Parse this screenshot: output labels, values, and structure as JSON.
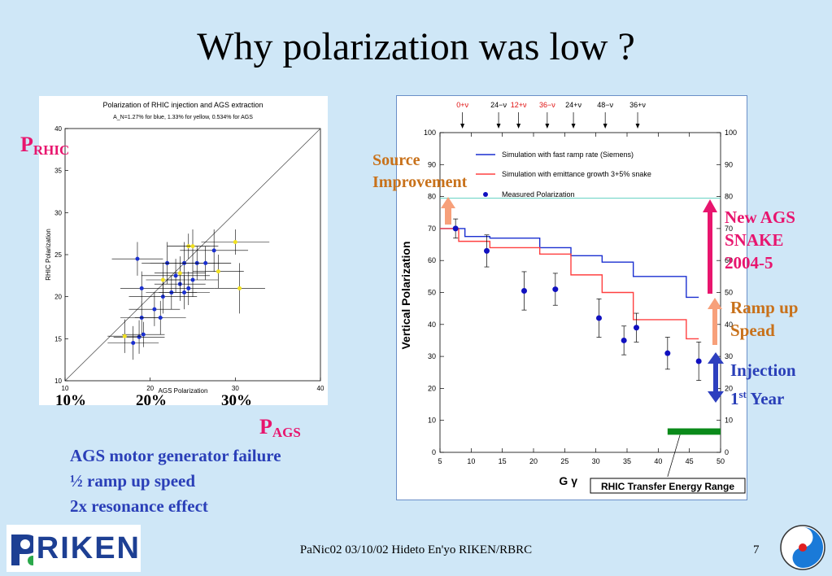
{
  "slide": {
    "title": "Why polarization was low ?",
    "footer": "PaNic02  03/10/02  Hideto En'yo RIKEN/RBRC",
    "page_number": "7",
    "logo_text": "RIKEN"
  },
  "labels": {
    "p_rhic": "P",
    "p_rhic_sub": "RHIC",
    "p_ags": "P",
    "p_ags_sub": "AGS",
    "pct_10": "10%",
    "pct_20": "20%",
    "pct_30": "30%",
    "source_improvement": [
      "Source",
      "Improvement"
    ],
    "new_ags_snake": [
      "New AGS",
      "SNAKE",
      "2004-5"
    ],
    "ramp_up": [
      "Ramp up",
      "Spead"
    ],
    "injection": "Injection",
    "first_year_num": "1",
    "first_year_sup": "st",
    "first_year_rest": " Year"
  },
  "notes": [
    "AGS motor generator failure",
    "½  ramp up speed",
    "2x resonance effect"
  ],
  "colors": {
    "blue_text": "#2a3fb8",
    "pink": "#e8156e",
    "orange_text": "#c8711a",
    "orange_arrow": "#f7a07a",
    "blue_arrow": "#2d3fbf",
    "green_bar": "#0a8a1a",
    "teal_line": "#60d0c0"
  },
  "chart_data": [
    {
      "type": "scatter",
      "title": "Polarization of RHIC  injection and AGS extraction",
      "subtitle": "A_N=1.27% for blue, 1.33% for yellow, 0.534% for AGS",
      "xlabel": "AGS Polarization",
      "ylabel": "RHIC Polarization",
      "xlim": [
        10,
        40
      ],
      "ylim": [
        10,
        40
      ],
      "xticks": [
        10,
        20,
        30,
        40
      ],
      "yticks": [
        10,
        15,
        20,
        25,
        30,
        35,
        40
      ],
      "diagonal": true,
      "series": [
        {
          "color": "#1a2fd0",
          "points": [
            [
              18.5,
              24.5,
              3,
              2
            ],
            [
              19,
              21,
              2.5,
              2
            ],
            [
              19,
              17.5,
              2.5,
              2
            ],
            [
              18.7,
              15.2,
              3,
              2
            ],
            [
              19.2,
              15.5,
              2.5,
              1.5
            ],
            [
              21.5,
              20,
              4,
              2
            ],
            [
              21.2,
              17.5,
              3,
              2
            ],
            [
              22,
              24,
              3,
              2.5
            ],
            [
              23,
              22.5,
              4,
              2
            ],
            [
              24,
              24,
              4,
              2.5
            ],
            [
              23.5,
              21.5,
              3,
              2
            ],
            [
              25,
              22,
              3,
              2
            ],
            [
              25.5,
              24,
              4,
              2
            ],
            [
              26.5,
              24,
              3,
              2
            ],
            [
              27.5,
              25.5,
              4,
              2.5
            ],
            [
              22.5,
              20.5,
              3,
              2
            ],
            [
              24,
              20.5,
              3,
              2
            ],
            [
              24.5,
              21,
              3,
              2
            ],
            [
              20.5,
              18.5,
              3,
              2
            ],
            [
              18,
              14.5,
              3,
              2
            ]
          ]
        },
        {
          "color": "#f0e020",
          "points": [
            [
              24.5,
              26,
              2.5,
              1.5
            ],
            [
              25,
              26,
              3,
              2
            ],
            [
              21.5,
              22,
              2,
              2
            ],
            [
              23.5,
              22.8,
              3,
              2
            ],
            [
              28,
              23,
              3,
              2
            ],
            [
              30,
              26.5,
              4,
              1.5
            ],
            [
              30.5,
              21,
              3,
              3
            ],
            [
              17,
              15.3,
              2,
              2
            ]
          ]
        }
      ]
    },
    {
      "type": "line",
      "xlabel": "G γ",
      "ylabel": "Vertical Polarization",
      "xlim": [
        5,
        50
      ],
      "ylim": [
        0,
        100
      ],
      "xticks": [
        5,
        10,
        15,
        20,
        25,
        30,
        35,
        40,
        45,
        50
      ],
      "yticks": [
        0,
        10,
        20,
        30,
        40,
        50,
        60,
        70,
        80,
        90,
        100
      ],
      "legend": [
        "Simulation with  fast ramp rate (Siemens)",
        "Simulation with emittance growth 3+5% snake",
        "Measured Polarization"
      ],
      "series": [
        {
          "name": "Simulation with  fast ramp rate (Siemens)",
          "color": "#1a2fd0",
          "steps": [
            [
              5,
              70
            ],
            [
              9,
              70
            ],
            [
              9,
              67.5
            ],
            [
              13,
              67.5
            ],
            [
              13,
              67
            ],
            [
              21,
              67
            ],
            [
              21,
              64
            ],
            [
              26,
              64
            ],
            [
              26,
              61.5
            ],
            [
              31,
              61.5
            ],
            [
              31,
              59.5
            ],
            [
              36,
              59.5
            ],
            [
              36,
              55
            ],
            [
              41,
              55
            ],
            [
              41,
              55
            ],
            [
              44.5,
              55
            ],
            [
              44.5,
              48.5
            ],
            [
              46.5,
              48.5
            ]
          ]
        },
        {
          "name": "Simulation with emittance growth 3+5% snake",
          "color": "#ff4040",
          "steps": [
            [
              5,
              70
            ],
            [
              8,
              70
            ],
            [
              8,
              66
            ],
            [
              13,
              66
            ],
            [
              13,
              64
            ],
            [
              21,
              64
            ],
            [
              21,
              62
            ],
            [
              26,
              62
            ],
            [
              26,
              55.5
            ],
            [
              31,
              55.5
            ],
            [
              31,
              50
            ],
            [
              36,
              50
            ],
            [
              36,
              41.5
            ],
            [
              44.5,
              41.5
            ],
            [
              44.5,
              35.5
            ],
            [
              46.5,
              35.5
            ]
          ]
        },
        {
          "name": "Measured Polarization",
          "color": "#1010c0",
          "points": [
            [
              7.5,
              70,
              3
            ],
            [
              12.5,
              63,
              5
            ],
            [
              18.5,
              50.5,
              6
            ],
            [
              23.5,
              51,
              5
            ],
            [
              30.5,
              42,
              6
            ],
            [
              34.5,
              35,
              4.5
            ],
            [
              36.5,
              39,
              4.5
            ],
            [
              41.5,
              31,
              5
            ],
            [
              46.5,
              28.5,
              6
            ]
          ]
        }
      ],
      "reference_line": 79.5,
      "resonances_top": [
        "0+ν",
        "24−ν",
        "12+ν",
        "36−ν",
        "24+ν",
        "48−ν",
        "36+ν"
      ],
      "resonance_x": [
        8.6,
        14.4,
        17.6,
        22.2,
        26.4,
        31.5,
        36.7
      ],
      "resonance_red": [
        true,
        false,
        true,
        true,
        false,
        false,
        false
      ],
      "green_bar_range": [
        41.5,
        50
      ],
      "annotation": "RHIC Transfer Energy Range"
    }
  ]
}
